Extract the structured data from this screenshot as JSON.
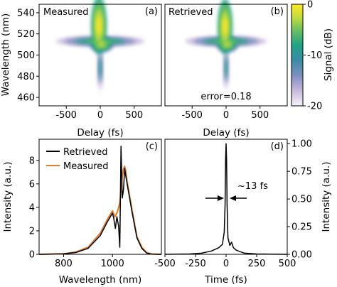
{
  "colors": {
    "retrieved": "#000000",
    "measured": "#e07a2c",
    "colormap": [
      "#f8f2fb",
      "#c9b8dc",
      "#7c8fc0",
      "#3a8ba8",
      "#21a383",
      "#6cc15e",
      "#c9dd3b",
      "#fde725"
    ]
  },
  "chart_data": [
    {
      "type": "heatmap",
      "panel_label": "(a)",
      "inset_title": "Measured",
      "xlabel": "Delay (fs)",
      "ylabel": "Wavelength (nm)",
      "x_ticks": [
        "-500",
        "0",
        "500"
      ],
      "y_ticks": [
        "460",
        "480",
        "500",
        "520",
        "540"
      ],
      "xlim": [
        -900,
        900
      ],
      "ylim": [
        452,
        548
      ],
      "features": [
        {
          "delay_center": -20,
          "wavelength_center": 528,
          "delay_halfwidth": 90,
          "wavelength_halfwidth": 22,
          "level_db": -2
        },
        {
          "delay_center": 20,
          "wavelength_center": 510,
          "delay_halfwidth": 140,
          "wavelength_halfwidth": 6,
          "level_db": -5
        },
        {
          "delay_center": 0,
          "wavelength_center": 513,
          "delay_halfwidth": 520,
          "wavelength_halfwidth": 4,
          "level_db": -10
        },
        {
          "delay_center": 0,
          "wavelength_center": 488,
          "delay_halfwidth": 40,
          "wavelength_halfwidth": 20,
          "level_db": -12
        }
      ]
    },
    {
      "type": "heatmap",
      "panel_label": "(b)",
      "inset_title": "Retrieved",
      "annotation": "error=0.18",
      "xlabel": "Delay (fs)",
      "x_ticks": [
        "-500",
        "0",
        "500"
      ],
      "xlim": [
        -900,
        900
      ],
      "ylim": [
        452,
        548
      ],
      "colorbar": {
        "label": "Signal (dB)",
        "ticks": [
          "0",
          "-10",
          "-20"
        ],
        "range": [
          -20,
          0
        ]
      },
      "features": [
        {
          "delay_center": -15,
          "wavelength_center": 527,
          "delay_halfwidth": 85,
          "wavelength_halfwidth": 21,
          "level_db": -2
        },
        {
          "delay_center": 20,
          "wavelength_center": 510,
          "delay_halfwidth": 130,
          "wavelength_halfwidth": 6,
          "level_db": -5
        },
        {
          "delay_center": 0,
          "wavelength_center": 513,
          "delay_halfwidth": 480,
          "wavelength_halfwidth": 4,
          "level_db": -10
        },
        {
          "delay_center": 0,
          "wavelength_center": 488,
          "delay_halfwidth": 38,
          "wavelength_halfwidth": 19,
          "level_db": -12
        }
      ]
    },
    {
      "type": "line",
      "panel_label": "(c)",
      "xlabel": "Wavelength (nm)",
      "ylabel": "Intensity (a.u.)",
      "x_ticks": [
        "800",
        "1000"
      ],
      "y_ticks": [
        "0",
        "2",
        "4",
        "6",
        "8"
      ],
      "xlim": [
        700,
        1200
      ],
      "ylim": [
        0,
        9.8
      ],
      "legend": "top-left",
      "series": [
        {
          "name": "Retrieved",
          "x": [
            700,
            800,
            850,
            900,
            950,
            980,
            1000,
            1005,
            1012,
            1018,
            1025,
            1030,
            1035,
            1040,
            1045,
            1050,
            1055,
            1060,
            1080,
            1100,
            1120,
            1140,
            1160,
            1200
          ],
          "y": [
            0,
            0.05,
            0.15,
            0.5,
            1.6,
            2.8,
            3.5,
            3.1,
            2.2,
            3.2,
            2.4,
            0.6,
            9.2,
            4.8,
            5.5,
            7.3,
            6.6,
            6.0,
            3.6,
            1.4,
            0.5,
            0.1,
            0.02,
            0
          ]
        },
        {
          "name": "Measured",
          "x": [
            700,
            800,
            850,
            900,
            950,
            980,
            1000,
            1010,
            1020,
            1030,
            1040,
            1045,
            1050,
            1055,
            1060,
            1080,
            1100,
            1120,
            1140,
            1160,
            1200
          ],
          "y": [
            0,
            0.05,
            0.2,
            0.6,
            1.8,
            3.0,
            3.7,
            3.2,
            3.6,
            4.4,
            6.6,
            7.3,
            7.5,
            7.0,
            6.2,
            3.8,
            1.5,
            0.6,
            0.15,
            0.03,
            0
          ]
        }
      ]
    },
    {
      "type": "line",
      "panel_label": "(d)",
      "xlabel": "Time (fs)",
      "ylabel": "Intensity (a.u.)",
      "x_ticks": [
        "-500",
        "-250",
        "0",
        "250",
        "500"
      ],
      "y_ticks": [
        "0.00",
        "0.25",
        "0.50",
        "0.75",
        "1.00"
      ],
      "xlim": [
        -500,
        500
      ],
      "ylim": [
        0,
        1.04
      ],
      "annotation": "~13 fs",
      "series": [
        {
          "name": "Retrieved",
          "x": [
            -500,
            -300,
            -200,
            -120,
            -60,
            -30,
            -15,
            -8,
            -4,
            0,
            4,
            8,
            15,
            30,
            45,
            60,
            80,
            100,
            150,
            250,
            500
          ],
          "y": [
            0,
            0.003,
            0.01,
            0.03,
            0.06,
            0.09,
            0.2,
            0.45,
            0.85,
            1.0,
            0.85,
            0.45,
            0.15,
            0.08,
            0.11,
            0.06,
            0.04,
            0.03,
            0.01,
            0.003,
            0
          ]
        }
      ]
    }
  ]
}
